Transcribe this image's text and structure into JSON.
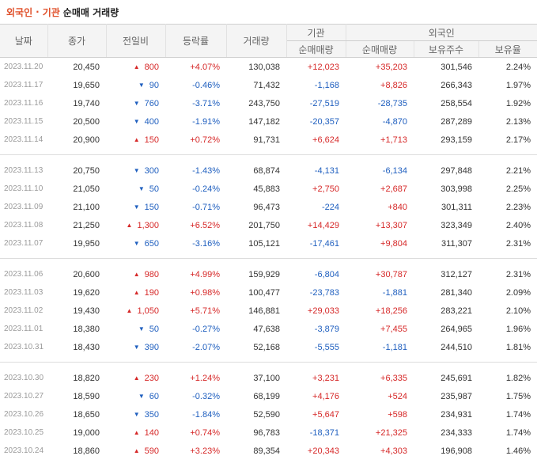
{
  "header": {
    "title_part1": "외국인",
    "title_sep": "·",
    "title_part2": "기관",
    "title_part3": "순매매 거래량"
  },
  "columns": {
    "date": "날짜",
    "close": "종가",
    "change": "전일비",
    "rate": "등락률",
    "volume": "거래량",
    "institution": "기관",
    "foreign": "외국인",
    "inst_net": "순매매량",
    "foreign_net": "순매매량",
    "holdings": "보유주수",
    "holding_ratio": "보유율"
  },
  "colors": {
    "up": "#d62828",
    "down": "#1f5fbf",
    "accent": "#e0502a"
  },
  "groups": [
    [
      {
        "date": "2023.11.20",
        "close": "20,450",
        "dir": "up",
        "change": "800",
        "rate": "+4.07%",
        "volume": "130,038",
        "inst": "+12,023",
        "foreign": "+35,203",
        "holdings": "301,546",
        "ratio": "2.24%"
      },
      {
        "date": "2023.11.17",
        "close": "19,650",
        "dir": "down",
        "change": "90",
        "rate": "-0.46%",
        "volume": "71,432",
        "inst": "-1,168",
        "foreign": "+8,826",
        "holdings": "266,343",
        "ratio": "1.97%"
      },
      {
        "date": "2023.11.16",
        "close": "19,740",
        "dir": "down",
        "change": "760",
        "rate": "-3.71%",
        "volume": "243,750",
        "inst": "-27,519",
        "foreign": "-28,735",
        "holdings": "258,554",
        "ratio": "1.92%"
      },
      {
        "date": "2023.11.15",
        "close": "20,500",
        "dir": "down",
        "change": "400",
        "rate": "-1.91%",
        "volume": "147,182",
        "inst": "-20,357",
        "foreign": "-4,870",
        "holdings": "287,289",
        "ratio": "2.13%"
      },
      {
        "date": "2023.11.14",
        "close": "20,900",
        "dir": "up",
        "change": "150",
        "rate": "+0.72%",
        "volume": "91,731",
        "inst": "+6,624",
        "foreign": "+1,713",
        "holdings": "293,159",
        "ratio": "2.17%"
      }
    ],
    [
      {
        "date": "2023.11.13",
        "close": "20,750",
        "dir": "down",
        "change": "300",
        "rate": "-1.43%",
        "volume": "68,874",
        "inst": "-4,131",
        "foreign": "-6,134",
        "holdings": "297,848",
        "ratio": "2.21%"
      },
      {
        "date": "2023.11.10",
        "close": "21,050",
        "dir": "down",
        "change": "50",
        "rate": "-0.24%",
        "volume": "45,883",
        "inst": "+2,750",
        "foreign": "+2,687",
        "holdings": "303,998",
        "ratio": "2.25%"
      },
      {
        "date": "2023.11.09",
        "close": "21,100",
        "dir": "down",
        "change": "150",
        "rate": "-0.71%",
        "volume": "96,473",
        "inst": "-224",
        "foreign": "+840",
        "holdings": "301,311",
        "ratio": "2.23%"
      },
      {
        "date": "2023.11.08",
        "close": "21,250",
        "dir": "up",
        "change": "1,300",
        "rate": "+6.52%",
        "volume": "201,750",
        "inst": "+14,429",
        "foreign": "+13,307",
        "holdings": "323,349",
        "ratio": "2.40%"
      },
      {
        "date": "2023.11.07",
        "close": "19,950",
        "dir": "down",
        "change": "650",
        "rate": "-3.16%",
        "volume": "105,121",
        "inst": "-17,461",
        "foreign": "+9,804",
        "holdings": "311,307",
        "ratio": "2.31%"
      }
    ],
    [
      {
        "date": "2023.11.06",
        "close": "20,600",
        "dir": "up",
        "change": "980",
        "rate": "+4.99%",
        "volume": "159,929",
        "inst": "-6,804",
        "foreign": "+30,787",
        "holdings": "312,127",
        "ratio": "2.31%"
      },
      {
        "date": "2023.11.03",
        "close": "19,620",
        "dir": "up",
        "change": "190",
        "rate": "+0.98%",
        "volume": "100,477",
        "inst": "-23,783",
        "foreign": "-1,881",
        "holdings": "281,340",
        "ratio": "2.09%"
      },
      {
        "date": "2023.11.02",
        "close": "19,430",
        "dir": "up",
        "change": "1,050",
        "rate": "+5.71%",
        "volume": "146,881",
        "inst": "+29,033",
        "foreign": "+18,256",
        "holdings": "283,221",
        "ratio": "2.10%"
      },
      {
        "date": "2023.11.01",
        "close": "18,380",
        "dir": "down",
        "change": "50",
        "rate": "-0.27%",
        "volume": "47,638",
        "inst": "-3,879",
        "foreign": "+7,455",
        "holdings": "264,965",
        "ratio": "1.96%"
      },
      {
        "date": "2023.10.31",
        "close": "18,430",
        "dir": "down",
        "change": "390",
        "rate": "-2.07%",
        "volume": "52,168",
        "inst": "-5,555",
        "foreign": "-1,181",
        "holdings": "244,510",
        "ratio": "1.81%"
      }
    ],
    [
      {
        "date": "2023.10.30",
        "close": "18,820",
        "dir": "up",
        "change": "230",
        "rate": "+1.24%",
        "volume": "37,100",
        "inst": "+3,231",
        "foreign": "+6,335",
        "holdings": "245,691",
        "ratio": "1.82%"
      },
      {
        "date": "2023.10.27",
        "close": "18,590",
        "dir": "down",
        "change": "60",
        "rate": "-0.32%",
        "volume": "68,199",
        "inst": "+4,176",
        "foreign": "+524",
        "holdings": "235,987",
        "ratio": "1.75%"
      },
      {
        "date": "2023.10.26",
        "close": "18,650",
        "dir": "down",
        "change": "350",
        "rate": "-1.84%",
        "volume": "52,590",
        "inst": "+5,647",
        "foreign": "+598",
        "holdings": "234,931",
        "ratio": "1.74%"
      },
      {
        "date": "2023.10.25",
        "close": "19,000",
        "dir": "up",
        "change": "140",
        "rate": "+0.74%",
        "volume": "96,783",
        "inst": "-18,371",
        "foreign": "+21,325",
        "holdings": "234,333",
        "ratio": "1.74%"
      },
      {
        "date": "2023.10.24",
        "close": "18,860",
        "dir": "up",
        "change": "590",
        "rate": "+3.23%",
        "volume": "89,354",
        "inst": "+20,343",
        "foreign": "+4,303",
        "holdings": "196,908",
        "ratio": "1.46%"
      }
    ]
  ]
}
